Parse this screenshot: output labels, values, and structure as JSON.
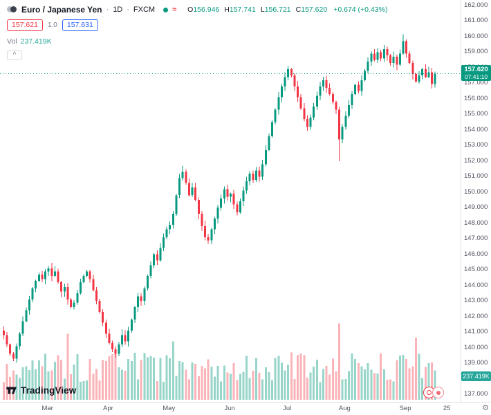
{
  "header": {
    "symbol_title": "Euro / Japanese Yen",
    "sep": "·",
    "timeframe": "1D",
    "exchange": "FXCM",
    "ohlc": {
      "o_label": "O",
      "o": "156.946",
      "h_label": "H",
      "h": "157.741",
      "l_label": "L",
      "l": "156.721",
      "c_label": "C",
      "c": "157.620",
      "change": "+0.674 (+0.43%)"
    },
    "bid": "157.621",
    "spread": "1.0",
    "ask": "157.631",
    "vol_label": "Vol",
    "vol_value": "237.419K",
    "collapse_caret": "^"
  },
  "icons": {
    "wave": "≈",
    "gear": "⚙"
  },
  "price_label": {
    "price": "157.620",
    "countdown": "07:41:10"
  },
  "volume_label": "237.419K",
  "price_scale": {
    "max": 162,
    "min": 137,
    "step": 1,
    "decimals": 3
  },
  "time_axis": {
    "labels": [
      {
        "label": "Mar",
        "index": 14
      },
      {
        "label": "Apr",
        "index": 33
      },
      {
        "label": "May",
        "index": 52
      },
      {
        "label": "Jun",
        "index": 71
      },
      {
        "label": "Jul",
        "index": 89
      },
      {
        "label": "Aug",
        "index": 107
      },
      {
        "label": "Sep",
        "index": 126
      },
      {
        "label": "25",
        "index": 139
      }
    ]
  },
  "logo": {
    "text": "TradingView"
  },
  "colors": {
    "up": "#089981",
    "down": "#f23645",
    "vol_up": "rgba(8,153,129,0.42)",
    "vol_down": "rgba(242,54,69,0.38)",
    "accent_blue": "#2962ff",
    "label_green": "#089981",
    "vol_label_bg": "#26a69a"
  },
  "chart_data": {
    "type": "candlestick",
    "title": "Euro / Japanese Yen",
    "timeframe": "1D",
    "exchange": "FXCM",
    "ylim": [
      137,
      162
    ],
    "y_step": 1,
    "x_labels": [
      "Mar",
      "Apr",
      "May",
      "Jun",
      "Jul",
      "Aug",
      "Sep",
      "25"
    ],
    "grid": false,
    "legend_position": "none",
    "first_open": 141.1,
    "closes": [
      140.8,
      140.2,
      139.6,
      139.3,
      140.1,
      140.9,
      141.7,
      142.4,
      143.1,
      143.8,
      144.3,
      144.7,
      144.4,
      144.9,
      145.1,
      144.6,
      144.9,
      144.2,
      143.6,
      143.9,
      143.1,
      142.6,
      142.9,
      143.5,
      144.2,
      144.6,
      144.9,
      144.4,
      143.7,
      143.0,
      142.3,
      141.6,
      140.9,
      140.3,
      139.9,
      139.6,
      140.2,
      140.8,
      140.4,
      141.1,
      141.8,
      142.6,
      143.3,
      143.0,
      143.8,
      144.6,
      145.3,
      146.0,
      145.6,
      146.4,
      147.1,
      147.6,
      147.9,
      148.6,
      149.8,
      150.9,
      151.3,
      150.6,
      149.8,
      150.3,
      149.5,
      148.6,
      147.8,
      147.1,
      146.9,
      147.6,
      148.3,
      149.0,
      149.6,
      150.2,
      149.7,
      149.9,
      149.2,
      148.7,
      149.4,
      150.1,
      150.7,
      151.2,
      150.8,
      151.4,
      151.0,
      151.8,
      152.7,
      153.6,
      154.5,
      155.3,
      156.1,
      156.8,
      157.4,
      157.9,
      157.5,
      156.8,
      156.1,
      155.4,
      154.7,
      154.2,
      154.8,
      155.5,
      156.2,
      156.8,
      157.2,
      156.7,
      156.3,
      155.8,
      155.3,
      153.4,
      154.2,
      154.9,
      155.6,
      156.3,
      156.9,
      156.5,
      157.2,
      157.8,
      158.4,
      158.9,
      158.5,
      159.0,
      158.6,
      159.2,
      158.8,
      158.3,
      158.7,
      158.2,
      158.9,
      159.7,
      158.9,
      158.3,
      157.6,
      157.1,
      157.5,
      157.9,
      157.4,
      157.7,
      156.95,
      157.62
    ],
    "last_candle": {
      "o": 156.946,
      "h": 157.741,
      "l": 156.721,
      "c": 157.62
    },
    "last_change": "+0.674 (+0.43%)",
    "wick_overrides": {
      "56": {
        "high": 151.7
      },
      "105": {
        "low": 152.0
      },
      "125": {
        "high": 160.15
      }
    },
    "volume_overrides_k": {
      "20": 530,
      "53": 470,
      "105": 615,
      "129": 500,
      "135": 237.419
    },
    "current_volume_k": 237.419,
    "current_price": 157.62
  }
}
